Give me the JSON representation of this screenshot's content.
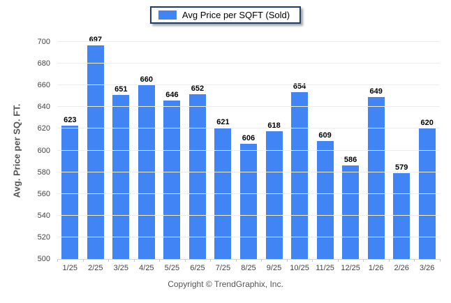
{
  "legend": {
    "label": "Avg Price per SQFT (Sold)",
    "swatch_color": "#4184f4"
  },
  "chart_data": {
    "type": "bar",
    "title": "",
    "xlabel": "",
    "ylabel": "Avg. Price per SQ. FT.",
    "categories": [
      "1/25",
      "2/25",
      "3/25",
      "4/25",
      "5/25",
      "6/25",
      "7/25",
      "8/25",
      "9/25",
      "10/25",
      "11/25",
      "12/25",
      "1/26",
      "2/26",
      "3/26"
    ],
    "values": [
      623,
      697,
      651,
      660,
      646,
      652,
      621,
      606,
      618,
      654,
      609,
      586,
      649,
      579,
      620
    ],
    "ylim": [
      500,
      700
    ],
    "ytick_step": 20,
    "yticks": [
      500,
      520,
      540,
      560,
      580,
      600,
      620,
      640,
      660,
      680,
      700
    ],
    "grid": "horizontal",
    "legend_position": "top-center",
    "bar_color": "#4184f4",
    "value_labels": true
  },
  "footer": {
    "copyright": "Copyright © TrendGraphix, Inc."
  }
}
